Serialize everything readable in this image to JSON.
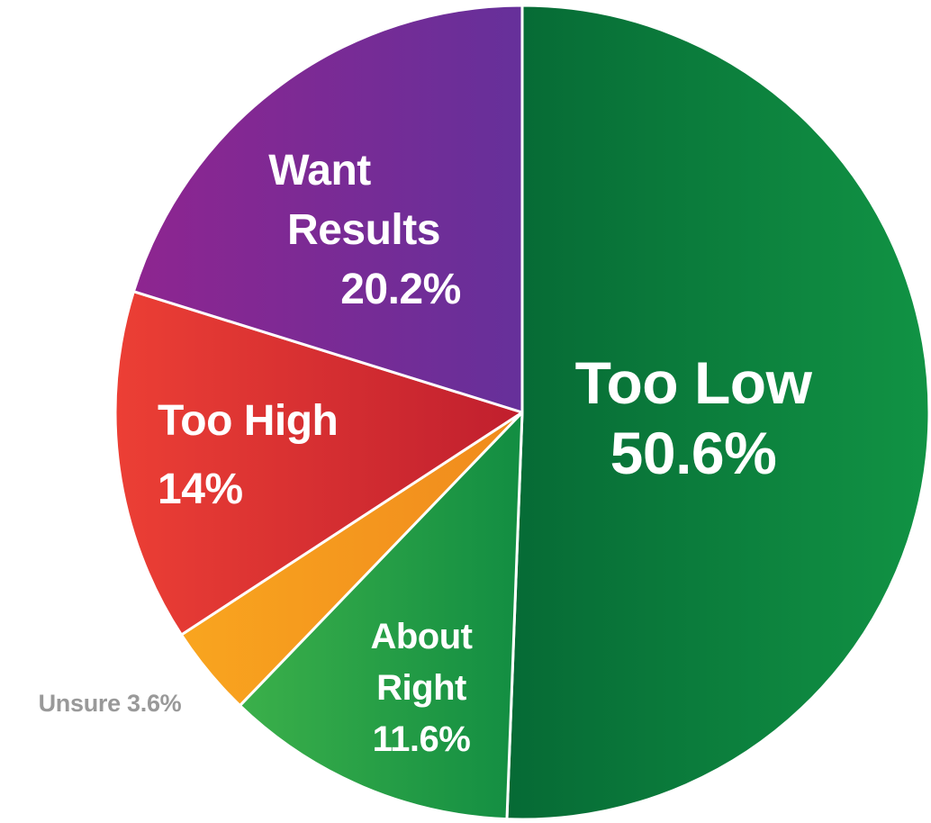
{
  "chart_data": {
    "type": "pie",
    "slices": [
      {
        "label_lines": [
          "Too Low",
          "50.6%"
        ],
        "name": "Too Low",
        "value": 50.6,
        "color": "#0b7a3b"
      },
      {
        "label_lines": [
          "About",
          "Right",
          "11.6%"
        ],
        "name": "About Right",
        "value": 11.6,
        "color": "#1f9a45"
      },
      {
        "label_lines": [
          "Unsure 3.6%"
        ],
        "name": "Unsure",
        "value": 3.6,
        "color": "#f4941e"
      },
      {
        "label_lines": [
          "Too High",
          "14%"
        ],
        "name": "Too High",
        "value": 14,
        "color": "#d8272d"
      },
      {
        "label_lines": [
          "Want",
          "Results",
          "20.2%"
        ],
        "name": "Want Results",
        "value": 20.2,
        "color": "#7a2a90"
      }
    ],
    "start_position": "top",
    "direction": "clockwise",
    "outside_label_color": "#999999"
  }
}
